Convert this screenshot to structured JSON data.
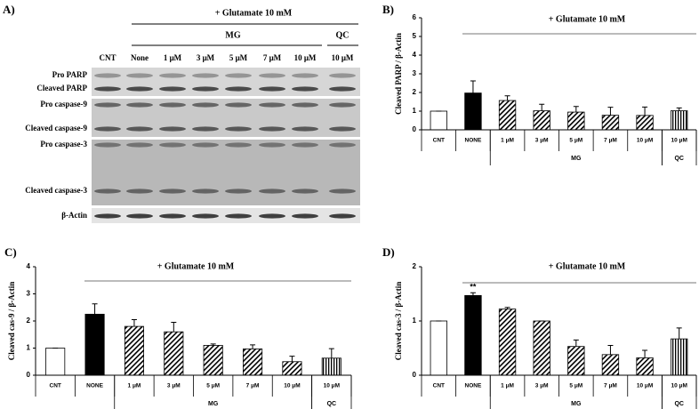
{
  "blot": {
    "panel_label": "A)",
    "annotation": "+ Glutamate 10 mM",
    "groups": [
      "MG",
      "QC"
    ],
    "lanes": [
      "CNT",
      "None",
      "1 μM",
      "3 μM",
      "5 μM",
      "7 μM",
      "10 μM",
      "10 μM"
    ],
    "rows": [
      "Pro PARP",
      "Cleaved PARP",
      "Pro caspase-9",
      "Cleaved caspase-9",
      "Pro caspase-3",
      "Cleaved caspase-3",
      "β-Actin"
    ]
  },
  "chart_data": [
    {
      "type": "bar",
      "panel_label": "B)",
      "annotation": "+ Glutamate 10 mM",
      "y_label": "Cleaved PARP / β-Actin",
      "categories": [
        "CNT",
        "NONE",
        "1 μM",
        "3 μM",
        "5 μM",
        "7 μM",
        "10 μM",
        "10 μM"
      ],
      "groups": [
        {
          "name": null,
          "count": 2
        },
        {
          "name": "MG",
          "count": 5
        },
        {
          "name": "QC",
          "count": 1
        }
      ],
      "values": [
        1,
        1.97,
        1.57,
        1.02,
        0.95,
        0.78,
        0.77,
        1.02
      ],
      "errors": [
        0,
        0.65,
        0.25,
        0.35,
        0.3,
        0.43,
        0.45,
        0.15
      ],
      "fills": [
        "white",
        "black",
        "hatch",
        "hatch",
        "hatch",
        "hatch",
        "hatch",
        "vstripe"
      ],
      "ylim": [
        0,
        6
      ],
      "yticks": [
        0,
        1,
        2,
        3,
        4,
        5,
        6
      ]
    },
    {
      "type": "bar",
      "panel_label": "C)",
      "annotation": "+ Glutamate 10 mM",
      "y_label": "Cleaved cas-9 / β-Actin",
      "categories": [
        "CNT",
        "NONE",
        "1 μM",
        "3 μM",
        "5 μM",
        "7 μM",
        "10 μM",
        "10 μM"
      ],
      "groups": [
        {
          "name": null,
          "count": 2
        },
        {
          "name": "MG",
          "count": 5
        },
        {
          "name": "QC",
          "count": 1
        }
      ],
      "values": [
        1,
        2.25,
        1.8,
        1.6,
        1.1,
        0.97,
        0.5,
        0.63
      ],
      "errors": [
        0,
        0.38,
        0.25,
        0.35,
        0.05,
        0.15,
        0.2,
        0.35
      ],
      "fills": [
        "white",
        "black",
        "hatch",
        "hatch",
        "hatch",
        "hatch",
        "hatch",
        "vstripe"
      ],
      "ylim": [
        0,
        4
      ],
      "yticks": [
        0,
        1,
        2,
        3,
        4
      ]
    },
    {
      "type": "bar",
      "panel_label": "D)",
      "annotation": "+ Glutamate 10 mM",
      "y_label": "Cleaved cas-3 / β-Actin",
      "categories": [
        "CNT",
        "NONE",
        "1 μM",
        "3 μM",
        "5 μM",
        "7 μM",
        "10 μM",
        "10 μM"
      ],
      "groups": [
        {
          "name": null,
          "count": 2
        },
        {
          "name": "MG",
          "count": 5
        },
        {
          "name": "QC",
          "count": 1
        }
      ],
      "values": [
        1,
        1.47,
        1.22,
        1.0,
        0.53,
        0.38,
        0.32,
        0.67
      ],
      "errors": [
        0,
        0.05,
        0.03,
        0,
        0.12,
        0.17,
        0.14,
        0.2
      ],
      "markers": [
        null,
        "**",
        null,
        null,
        null,
        null,
        null,
        null
      ],
      "fills": [
        "white",
        "black",
        "hatch",
        "hatch",
        "hatch",
        "hatch",
        "hatch",
        "vstripe"
      ],
      "ylim": [
        0,
        2
      ],
      "yticks": [
        0,
        1,
        2
      ]
    }
  ]
}
